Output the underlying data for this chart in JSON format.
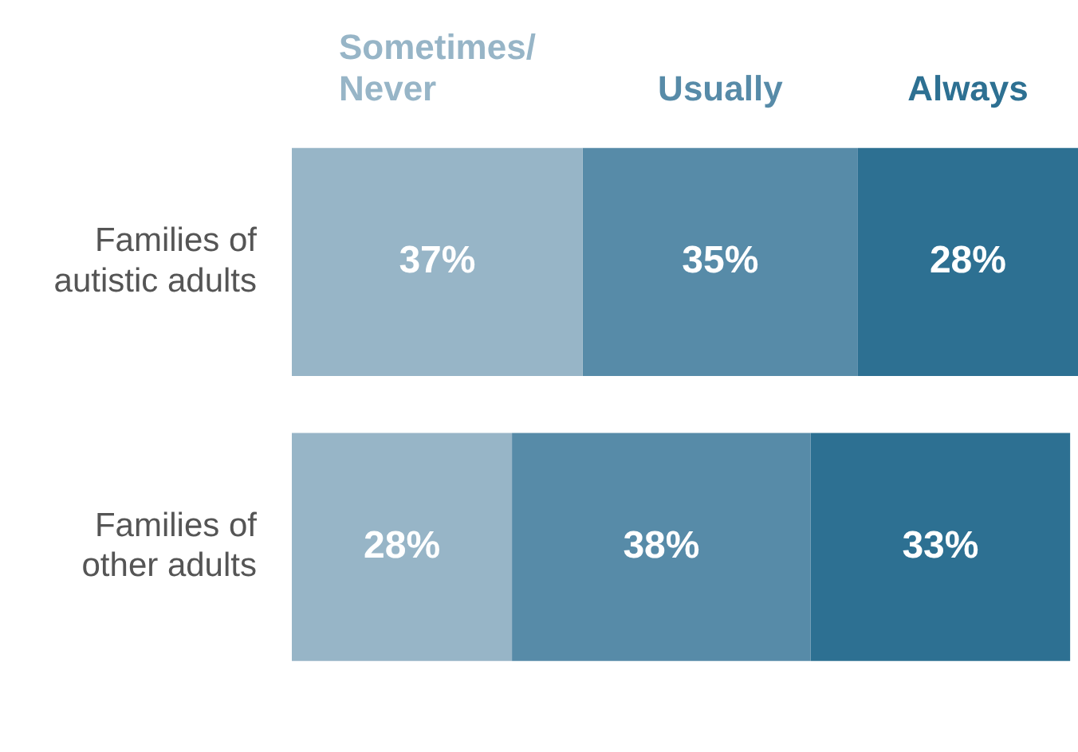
{
  "chart_data": {
    "type": "bar",
    "orientation": "horizontal",
    "stacked": true,
    "legend": "top",
    "tick_labels": "y",
    "xlim": [
      0,
      100
    ],
    "categories": [
      "Families of autistic adults",
      "Families of other adults"
    ],
    "series": [
      {
        "name": "Sometimes/Never",
        "color": "#97b5c7",
        "values": [
          37,
          28
        ],
        "value_labels": [
          "37%",
          "28%"
        ]
      },
      {
        "name": "Usually",
        "color": "#578ba8",
        "values": [
          35,
          38
        ],
        "value_labels": [
          "35%",
          "38%"
        ]
      },
      {
        "name": "Always",
        "color": "#2d7092",
        "values": [
          28,
          33
        ],
        "value_labels": [
          "28%",
          "33%"
        ]
      }
    ]
  }
}
